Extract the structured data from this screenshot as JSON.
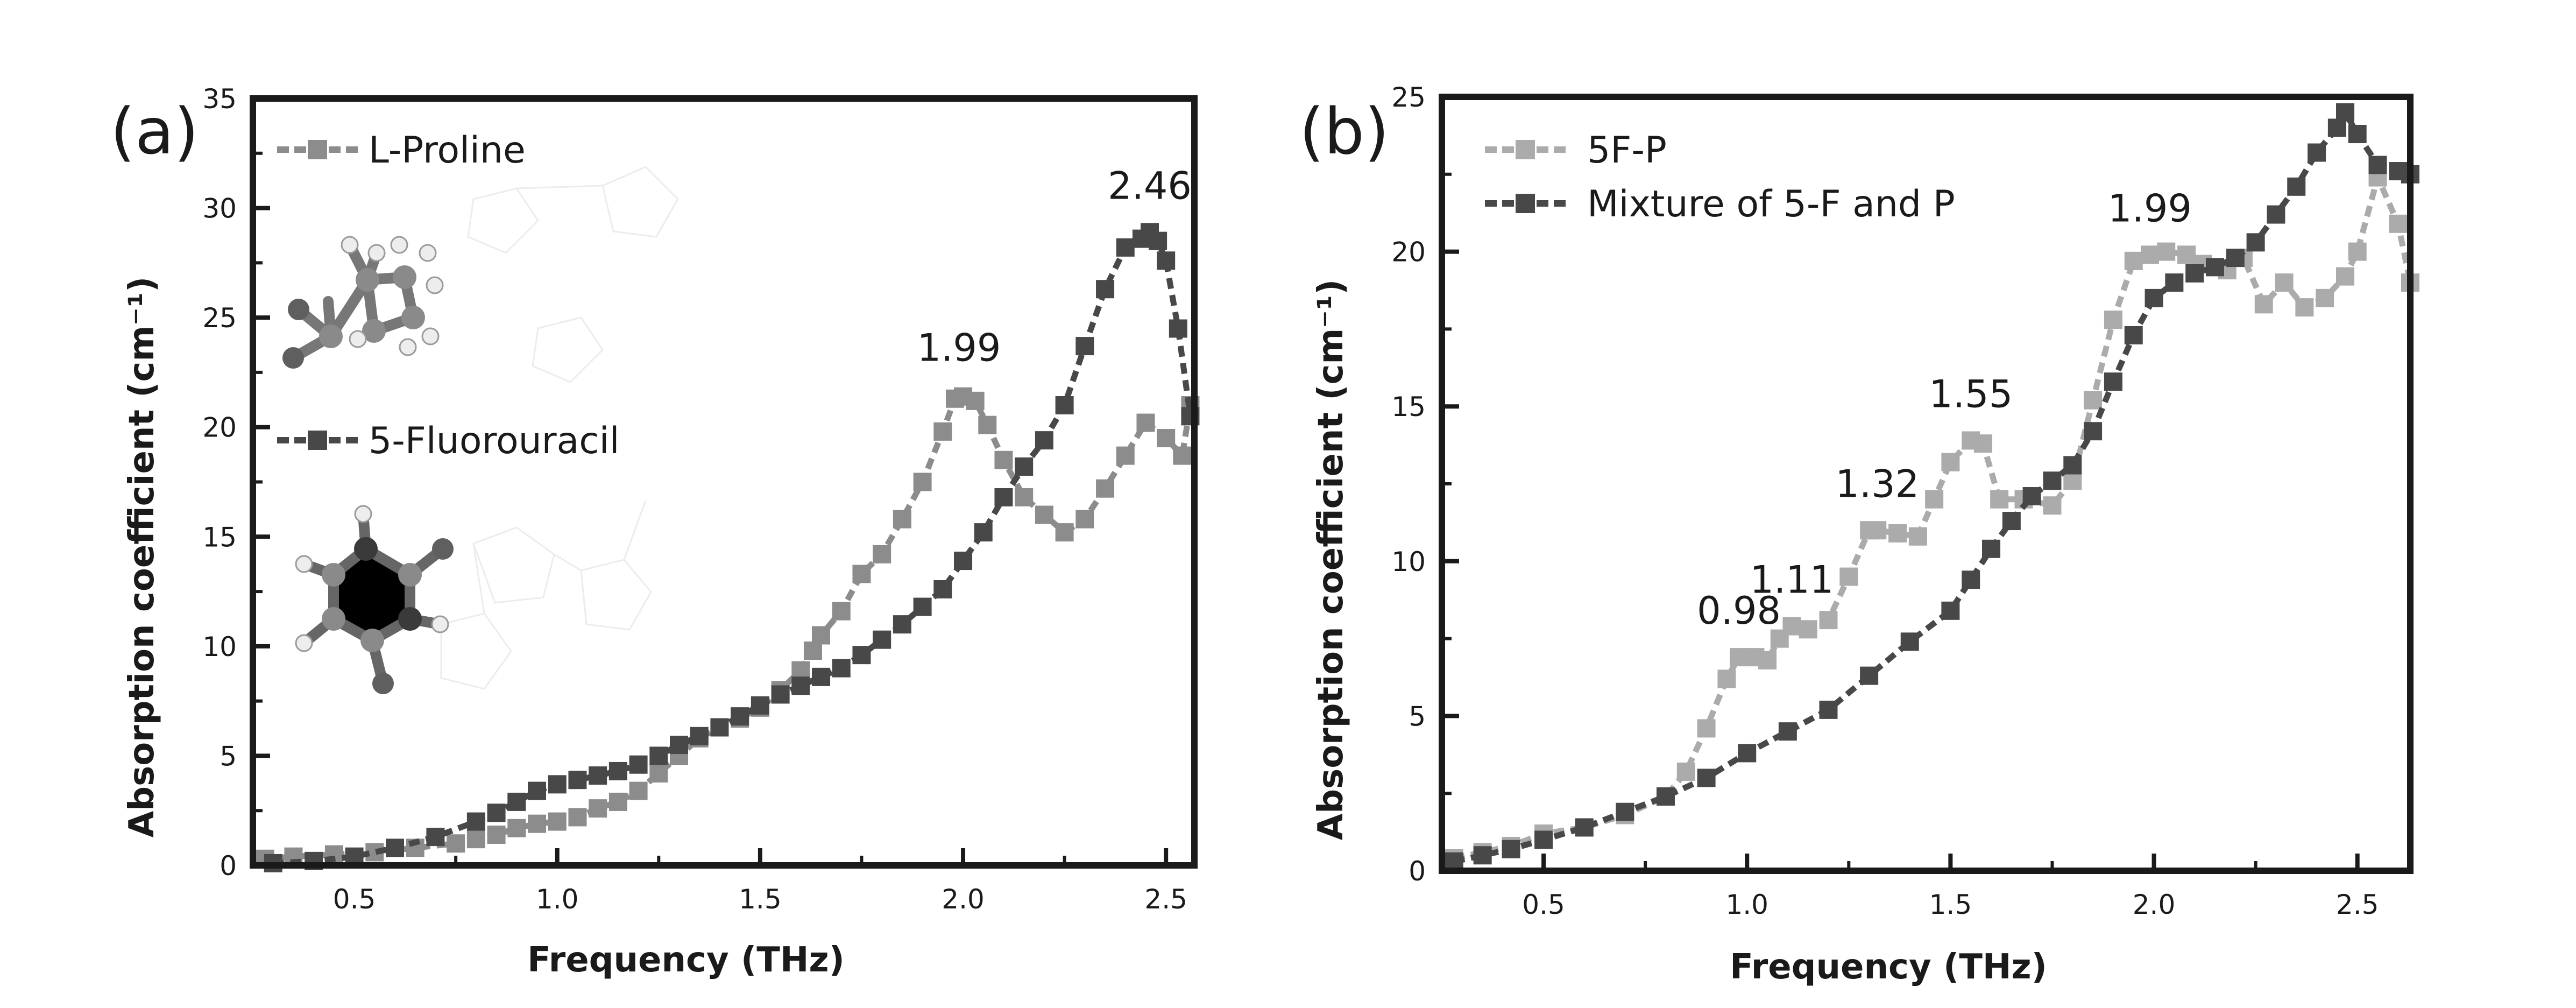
{
  "panels": [
    {
      "panel_label": "(a)",
      "molecules": [
        "L-Proline",
        "5-Fluorouracil"
      ]
    },
    {
      "panel_label": "(b)",
      "molecules": []
    }
  ],
  "colors": {
    "series_light": "#8c8c8c",
    "series_dark": "#484848",
    "series_lighter": "#ababab",
    "axis": "#1a1a1a"
  },
  "chart_data": [
    {
      "type": "line",
      "title": "(a)",
      "xlabel": "Frequency (THz)",
      "ylabel": "Absorption coefficient (cm⁻¹)",
      "xlim": [
        0.25,
        2.57
      ],
      "ylim": [
        0,
        35
      ],
      "xticks": [
        0.5,
        1.0,
        1.5,
        2.0,
        2.5
      ],
      "xtick_labels": [
        "0.5",
        "1.0",
        "1.5",
        "2.0",
        "2.5"
      ],
      "yticks": [
        0,
        5,
        10,
        15,
        20,
        25,
        30,
        35
      ],
      "ytick_labels": [
        "0",
        "5",
        "10",
        "15",
        "20",
        "25",
        "30",
        "35"
      ],
      "legend_position": "left",
      "series": [
        {
          "name": "L-Proline",
          "color": "#8c8c8c",
          "x": [
            0.28,
            0.35,
            0.45,
            0.55,
            0.65,
            0.75,
            0.8,
            0.85,
            0.9,
            0.95,
            1.0,
            1.05,
            1.1,
            1.15,
            1.2,
            1.25,
            1.3,
            1.35,
            1.4,
            1.45,
            1.5,
            1.55,
            1.6,
            1.63,
            1.65,
            1.7,
            1.75,
            1.8,
            1.85,
            1.9,
            1.95,
            1.98,
            2.0,
            2.03,
            2.06,
            2.1,
            2.15,
            2.2,
            2.25,
            2.3,
            2.35,
            2.4,
            2.45,
            2.5,
            2.54,
            2.56
          ],
          "values": [
            0.3,
            0.4,
            0.5,
            0.6,
            0.8,
            1.0,
            1.2,
            1.4,
            1.7,
            1.9,
            2.0,
            2.2,
            2.6,
            2.9,
            3.4,
            4.2,
            5.0,
            5.8,
            6.3,
            6.7,
            7.2,
            8.0,
            8.9,
            9.8,
            10.5,
            11.6,
            13.3,
            14.2,
            15.8,
            17.5,
            19.8,
            21.3,
            21.4,
            21.2,
            20.1,
            18.5,
            16.8,
            16.0,
            15.2,
            15.8,
            17.2,
            18.7,
            20.2,
            19.5,
            18.7,
            21.0
          ]
        },
        {
          "name": "5-Fluorouracil",
          "color": "#484848",
          "x": [
            0.3,
            0.4,
            0.5,
            0.6,
            0.7,
            0.8,
            0.85,
            0.9,
            0.95,
            1.0,
            1.05,
            1.1,
            1.15,
            1.2,
            1.25,
            1.3,
            1.35,
            1.4,
            1.45,
            1.5,
            1.55,
            1.6,
            1.65,
            1.7,
            1.75,
            1.8,
            1.85,
            1.9,
            1.95,
            2.0,
            2.05,
            2.1,
            2.15,
            2.2,
            2.25,
            2.3,
            2.35,
            2.4,
            2.44,
            2.46,
            2.48,
            2.5,
            2.53,
            2.56
          ],
          "values": [
            0.1,
            0.2,
            0.4,
            0.8,
            1.3,
            2.0,
            2.4,
            2.9,
            3.4,
            3.7,
            3.9,
            4.1,
            4.3,
            4.6,
            5.0,
            5.5,
            5.9,
            6.3,
            6.8,
            7.3,
            7.8,
            8.2,
            8.6,
            9.0,
            9.6,
            10.3,
            11.0,
            11.8,
            12.6,
            13.9,
            15.2,
            16.8,
            18.2,
            19.4,
            21.0,
            23.7,
            26.3,
            28.2,
            28.6,
            28.9,
            28.5,
            27.6,
            24.5,
            20.5
          ]
        }
      ],
      "annotations": [
        {
          "text": "1.99",
          "x": 1.99,
          "y": 21.5
        },
        {
          "text": "2.46",
          "x": 2.46,
          "y": 28.9
        }
      ]
    },
    {
      "type": "line",
      "title": "(b)",
      "xlabel": "Frequency (THz)",
      "ylabel": "Absorption coefficient (cm⁻¹)",
      "xlim": [
        0.25,
        2.63
      ],
      "ylim": [
        0,
        25
      ],
      "xticks": [
        0.5,
        1.0,
        1.5,
        2.0,
        2.5
      ],
      "xtick_labels": [
        "0.5",
        "1.0",
        "1.5",
        "2.0",
        "2.5"
      ],
      "yticks": [
        0,
        5,
        10,
        15,
        20,
        25
      ],
      "ytick_labels": [
        "0",
        "5",
        "10",
        "15",
        "20",
        "25"
      ],
      "legend_position": "top-left",
      "series": [
        {
          "name": "5F-P",
          "color": "#ababab",
          "x": [
            0.28,
            0.35,
            0.42,
            0.5,
            0.6,
            0.7,
            0.8,
            0.85,
            0.9,
            0.95,
            0.98,
            1.02,
            1.05,
            1.08,
            1.11,
            1.15,
            1.2,
            1.25,
            1.3,
            1.32,
            1.37,
            1.42,
            1.46,
            1.5,
            1.55,
            1.58,
            1.62,
            1.68,
            1.75,
            1.8,
            1.85,
            1.9,
            1.95,
            1.99,
            2.03,
            2.08,
            2.12,
            2.18,
            2.22,
            2.27,
            2.32,
            2.37,
            2.42,
            2.47,
            2.5,
            2.55,
            2.6,
            2.63
          ],
          "values": [
            0.4,
            0.6,
            0.8,
            1.2,
            1.4,
            1.8,
            2.4,
            3.2,
            4.6,
            6.2,
            6.9,
            6.9,
            6.8,
            7.5,
            7.9,
            7.8,
            8.1,
            9.5,
            11.0,
            11.0,
            10.9,
            10.8,
            12.0,
            13.2,
            13.9,
            13.8,
            12.0,
            12.0,
            11.8,
            12.6,
            15.2,
            17.8,
            19.7,
            19.9,
            20.0,
            19.9,
            19.6,
            19.4,
            19.8,
            18.3,
            19.0,
            18.2,
            18.5,
            19.2,
            20.0,
            22.4,
            20.9,
            19.0
          ]
        },
        {
          "name": "Mixture of 5-F and P",
          "color": "#484848",
          "x": [
            0.28,
            0.35,
            0.42,
            0.5,
            0.6,
            0.7,
            0.8,
            0.9,
            1.0,
            1.1,
            1.2,
            1.3,
            1.4,
            1.5,
            1.55,
            1.6,
            1.65,
            1.7,
            1.75,
            1.8,
            1.85,
            1.9,
            1.95,
            2.0,
            2.05,
            2.1,
            2.15,
            2.2,
            2.25,
            2.3,
            2.35,
            2.4,
            2.45,
            2.47,
            2.5,
            2.55,
            2.6,
            2.63
          ],
          "values": [
            0.3,
            0.5,
            0.7,
            1.0,
            1.4,
            1.9,
            2.4,
            3.0,
            3.8,
            4.5,
            5.2,
            6.3,
            7.4,
            8.4,
            9.4,
            10.4,
            11.3,
            12.1,
            12.6,
            13.1,
            14.2,
            15.8,
            17.3,
            18.5,
            19.0,
            19.3,
            19.5,
            19.8,
            20.3,
            21.2,
            22.1,
            23.2,
            24.0,
            24.5,
            23.8,
            22.8,
            22.6,
            22.5
          ]
        }
      ],
      "annotations": [
        {
          "text": "0.98",
          "x": 0.98,
          "y": 6.9
        },
        {
          "text": "1.11",
          "x": 1.11,
          "y": 7.9
        },
        {
          "text": "1.32",
          "x": 1.32,
          "y": 11.0
        },
        {
          "text": "1.55",
          "x": 1.55,
          "y": 13.9
        },
        {
          "text": "1.99",
          "x": 1.99,
          "y": 19.9
        }
      ]
    }
  ]
}
